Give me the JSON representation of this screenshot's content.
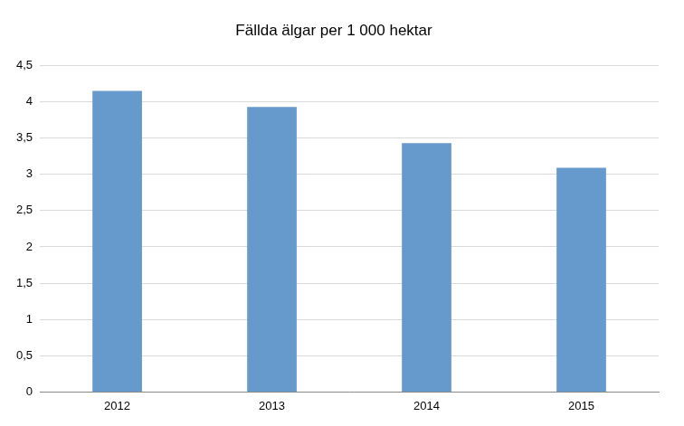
{
  "chart_data": {
    "type": "bar",
    "title": "Fällda älgar per 1 000 hektar",
    "categories": [
      "2012",
      "2013",
      "2014",
      "2015"
    ],
    "values": [
      4.15,
      3.93,
      3.43,
      3.09
    ],
    "color": "#6699cc",
    "ylim": [
      0,
      4.5
    ],
    "yticks": [
      0,
      {
        "value": 0.5,
        "label": "0,5"
      },
      1,
      {
        "value": 1.5,
        "label": "1,5"
      },
      2,
      {
        "value": 2.5,
        "label": "2,5"
      },
      3,
      {
        "value": 3.5,
        "label": "3,5"
      },
      4,
      {
        "value": 4.5,
        "label": "4,5"
      }
    ],
    "grid": true
  }
}
